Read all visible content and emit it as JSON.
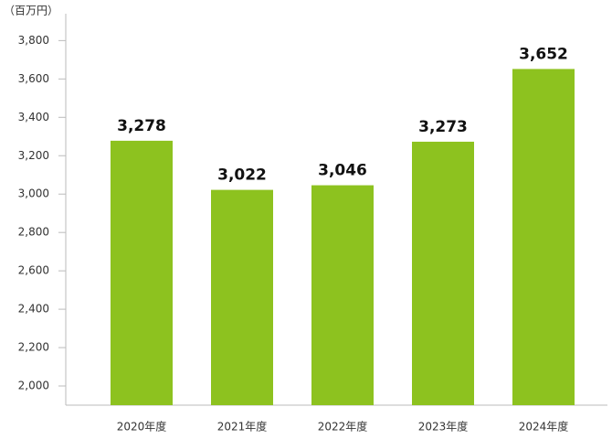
{
  "chart_data": {
    "type": "bar",
    "y_axis_label": "（百万円）",
    "categories": [
      "2020年度",
      "2021年度",
      "2022年度",
      "2023年度",
      "2024年度"
    ],
    "values": [
      3278,
      3022,
      3046,
      3273,
      3652
    ],
    "value_labels": [
      "3,278",
      "3,022",
      "3,046",
      "3,273",
      "3,652"
    ],
    "color": "#8dc21f",
    "ylim": [
      1900,
      3940
    ],
    "yticks": [
      {
        "value": 2000,
        "label": "2,000"
      },
      {
        "value": 2200,
        "label": "2,200"
      },
      {
        "value": 2400,
        "label": "2,400"
      },
      {
        "value": 2600,
        "label": "2,600"
      },
      {
        "value": 2800,
        "label": "2,800"
      },
      {
        "value": 3000,
        "label": "3,000"
      },
      {
        "value": 3200,
        "label": "3,200"
      },
      {
        "value": 3400,
        "label": "3,400"
      },
      {
        "value": 3600,
        "label": "3,600"
      },
      {
        "value": 3800,
        "label": "3,800"
      }
    ],
    "grid": false
  }
}
